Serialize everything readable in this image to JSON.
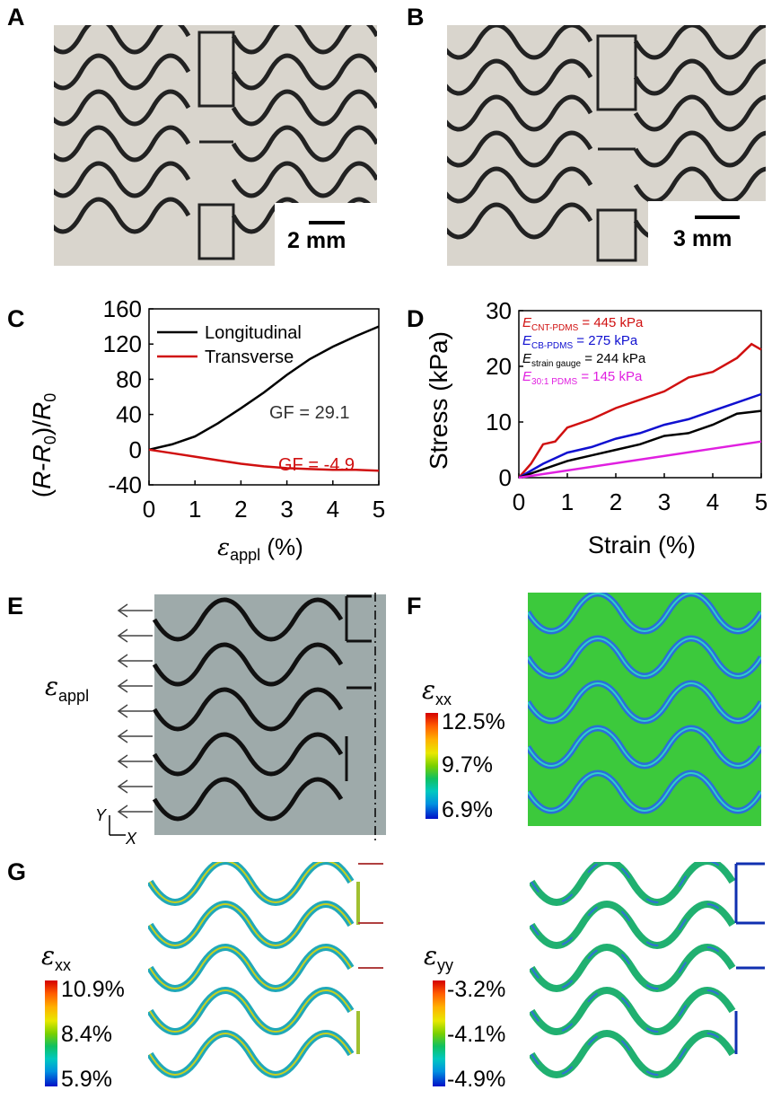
{
  "panels": {
    "A": "A",
    "B": "B",
    "C": "C",
    "D": "D",
    "E": "E",
    "F": "F",
    "G": "G"
  },
  "photoA": {
    "scale_label": "2 mm"
  },
  "photoB": {
    "scale_label": "3 mm"
  },
  "chart_data": [
    {
      "type": "line",
      "panel": "C",
      "ylabel": "(R-R0)/R0",
      "xlabel": "εappl (%)",
      "xlim": [
        0,
        5
      ],
      "ylim": [
        -40,
        160
      ],
      "xticks": [
        "0",
        "1",
        "2",
        "3",
        "4",
        "5"
      ],
      "yticks": [
        "160",
        "120",
        "80",
        "40",
        "0",
        "-40"
      ],
      "legend": [
        "Longitudinal",
        "Transverse"
      ],
      "annotations": {
        "gf_long": "GF = 29.1",
        "gf_trans": "GF = -4.9"
      },
      "series": [
        {
          "name": "Longitudinal",
          "color": "#000000",
          "x": [
            0,
            0.5,
            1,
            1.5,
            2,
            2.5,
            3,
            3.5,
            4,
            4.5,
            5
          ],
          "y": [
            0,
            6,
            15,
            30,
            47,
            65,
            85,
            103,
            117,
            129,
            140
          ]
        },
        {
          "name": "Transverse",
          "color": "#d01010",
          "x": [
            0,
            0.5,
            1,
            1.5,
            2,
            2.5,
            3,
            3.5,
            4,
            4.5,
            5
          ],
          "y": [
            0,
            -4,
            -8,
            -12,
            -16,
            -19,
            -21,
            -22,
            -23,
            -23,
            -24
          ]
        }
      ]
    },
    {
      "type": "line",
      "panel": "D",
      "ylabel": "Stress (kPa)",
      "xlabel": "Strain (%)",
      "xlim": [
        0,
        5
      ],
      "ylim": [
        0,
        30
      ],
      "xticks": [
        "0",
        "1",
        "2",
        "3",
        "4",
        "5"
      ],
      "yticks": [
        "30",
        "20",
        "10",
        "0"
      ],
      "legend_entries": [
        {
          "sym": "E",
          "sub": "CNT-PDMS",
          "rest": " = 445 kPa",
          "color": "#d01010"
        },
        {
          "sym": "E",
          "sub": "CB-PDMS",
          "rest": " = 275 kPa",
          "color": "#1010d0"
        },
        {
          "sym": "E",
          "sub": "strain gauge",
          "rest": " = 244 kPa",
          "color": "#000000"
        },
        {
          "sym": "E",
          "sub": "30:1 PDMS",
          "rest": " = 145 kPa",
          "color": "#e020e0"
        }
      ],
      "series": [
        {
          "name": "CNT-PDMS",
          "color": "#d01010",
          "x": [
            0,
            0.25,
            0.5,
            0.75,
            1,
            1.5,
            2,
            2.5,
            3,
            3.5,
            4,
            4.5,
            4.8,
            5
          ],
          "y": [
            0,
            2.5,
            6,
            6.5,
            9,
            10.5,
            12.5,
            14,
            15.5,
            18,
            19,
            21.5,
            24,
            23
          ]
        },
        {
          "name": "CB-PDMS",
          "color": "#1010d0",
          "x": [
            0,
            0.5,
            1,
            1.5,
            2,
            2.5,
            3,
            3.5,
            4,
            4.5,
            5
          ],
          "y": [
            0,
            2.5,
            4.5,
            5.5,
            7,
            8,
            9.5,
            10.5,
            12,
            13.5,
            15
          ]
        },
        {
          "name": "strain gauge",
          "color": "#000000",
          "x": [
            0,
            0.5,
            1,
            1.5,
            2,
            2.5,
            3,
            3.5,
            4,
            4.5,
            5
          ],
          "y": [
            0,
            1.5,
            3,
            4,
            5,
            6,
            7.5,
            8,
            9.5,
            11.5,
            12
          ]
        },
        {
          "name": "30:1 PDMS",
          "color": "#e020e0",
          "x": [
            0,
            5
          ],
          "y": [
            0,
            6.5
          ]
        }
      ]
    }
  ],
  "panelE": {
    "sym": "ε",
    "sub": "appl",
    "axis_y": "Y",
    "axis_x": "X"
  },
  "panelF": {
    "sym": "ε",
    "sub": "xx",
    "cb_max": "12.5%",
    "cb_mid": "9.7%",
    "cb_min": "6.9%"
  },
  "panelG_left": {
    "sym": "ε",
    "sub": "xx",
    "cb_max": "10.9%",
    "cb_mid": "8.4%",
    "cb_min": "5.9%"
  },
  "panelG_right": {
    "sym": "ε",
    "sub": "yy",
    "cb_max": "-3.2%",
    "cb_mid": "-4.1%",
    "cb_min": "-4.9%"
  }
}
